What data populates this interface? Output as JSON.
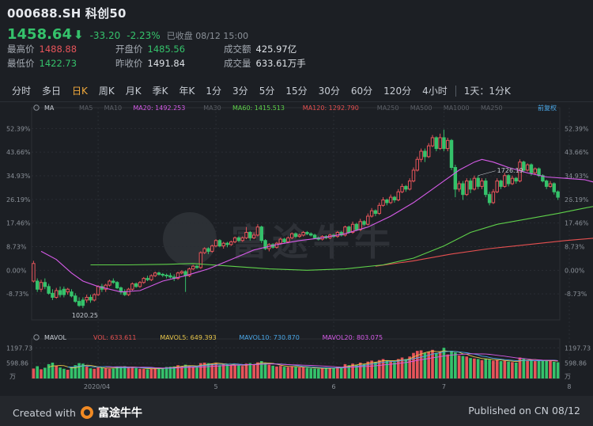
{
  "header": {
    "symbol": "000688.SH",
    "name": "科创50",
    "price": "1458.64",
    "change": "-33.20",
    "change_pct": "-2.23%",
    "status": "已收盘 08/12 15:00"
  },
  "stats": [
    {
      "label": "最高价",
      "value": "1488.88",
      "color": "r"
    },
    {
      "label": "开盘价",
      "value": "1485.56",
      "color": "g"
    },
    {
      "label": "成交额",
      "value": "425.97亿",
      "color": ""
    },
    {
      "label": "最低价",
      "value": "1422.73",
      "color": "g"
    },
    {
      "label": "昨收价",
      "value": "1491.84",
      "color": ""
    },
    {
      "label": "成交量",
      "value": "633.61万手",
      "color": ""
    }
  ],
  "periods": [
    "分时",
    "多日",
    "日K",
    "周K",
    "月K",
    "季K",
    "年K",
    "1分",
    "3分",
    "5分",
    "15分",
    "30分",
    "60分",
    "120分",
    "4小时",
    "1天：1分K"
  ],
  "active_period": "日K",
  "ma_legend": {
    "label": "MA",
    "items": [
      {
        "text": "MA5",
        "color": "#5b5f66"
      },
      {
        "text": "MA10",
        "color": "#5b5f66"
      },
      {
        "text": "MA20: 1492.253",
        "color": "#d65be8"
      },
      {
        "text": "MA30",
        "color": "#5b5f66"
      },
      {
        "text": "MA60: 1415.513",
        "color": "#5fd14a"
      },
      {
        "text": "MA120: 1292.790",
        "color": "#e65050"
      },
      {
        "text": "MA250",
        "color": "#5b5f66"
      },
      {
        "text": "MA500",
        "color": "#5b5f66"
      },
      {
        "text": "MA1000",
        "color": "#5b5f66"
      },
      {
        "text": "MA250",
        "color": "#5b5f66"
      }
    ],
    "adjust": "前复权"
  },
  "vol_legend": {
    "label": "MAVOL",
    "items": [
      {
        "text": "VOL: 633.611",
        "color": "#e65050"
      },
      {
        "text": "MAVOL5: 649.393",
        "color": "#e8c64a"
      },
      {
        "text": "MAVOL10: 730.870",
        "color": "#4aa8e8"
      },
      {
        "text": "MAVOL20: 803.075",
        "color": "#d65be8"
      }
    ]
  },
  "watermark": "富途牛牛",
  "footer": {
    "created_with": "Created with",
    "brand": "富途牛牛",
    "published": "Published on CN 08/12"
  },
  "chart_data": {
    "type": "candlestick",
    "y_ticks": [
      "52.39%",
      "43.66%",
      "34.93%",
      "26.19%",
      "17.46%",
      "8.73%",
      "0.00%",
      "-8.73%"
    ],
    "y_tick_values": [
      52.39,
      43.66,
      34.93,
      26.19,
      17.46,
      8.73,
      0.0,
      -8.73
    ],
    "ylim": [
      -16,
      56
    ],
    "x_labels": [
      {
        "label": "2020/04",
        "index": 17
      },
      {
        "label": "5",
        "index": 48
      },
      {
        "label": "6",
        "index": 79
      },
      {
        "label": "7",
        "index": 108
      },
      {
        "label": "8",
        "index": 141
      }
    ],
    "annotations": [
      {
        "text": "1726.19",
        "index": 117
      },
      {
        "text": "1020.25",
        "index": 13
      }
    ],
    "vol_ticks": [
      "1197.73",
      "598.86",
      "万"
    ],
    "vol_tick_values": [
      1197.73,
      598.86
    ],
    "vol_ylim": [
      0,
      1300
    ],
    "candles": [
      [
        1,
        2.5,
        -4,
        3.5,
        -4.5,
        390
      ],
      [
        0,
        -4,
        -7,
        -3,
        -8,
        480
      ],
      [
        1,
        -7,
        -4.5,
        -3.5,
        -8,
        360
      ],
      [
        0,
        -4.5,
        -6,
        -3,
        -7,
        420
      ],
      [
        0,
        -6,
        -8.5,
        -5,
        -9,
        560
      ],
      [
        0,
        -8.5,
        -10,
        -7,
        -11,
        620
      ],
      [
        1,
        -10,
        -7.5,
        -6.5,
        -10.5,
        510
      ],
      [
        0,
        -7.5,
        -9,
        -6,
        -10,
        430
      ],
      [
        0,
        -9,
        -7,
        -6,
        -10,
        380
      ],
      [
        1,
        -7,
        -8,
        -6.5,
        -9,
        340
      ],
      [
        0,
        -8,
        -9.5,
        -7,
        -10,
        430
      ],
      [
        0,
        -9.5,
        -11.5,
        -8.5,
        -12,
        520
      ],
      [
        0,
        -11.5,
        -13,
        -10,
        -13.5,
        600
      ],
      [
        0,
        -13,
        -11,
        -10,
        -14,
        580
      ],
      [
        1,
        -11,
        -10,
        -9,
        -12,
        470
      ],
      [
        0,
        -10,
        -11,
        -9,
        -12,
        400
      ],
      [
        1,
        -11,
        -9,
        -8.5,
        -11.5,
        380
      ],
      [
        1,
        -9,
        -6,
        -5.5,
        -9.5,
        440
      ],
      [
        0,
        -6,
        -7,
        -5,
        -8,
        420
      ],
      [
        1,
        -7,
        -5.5,
        -5,
        -8,
        410
      ],
      [
        1,
        -5.5,
        -4,
        -3.5,
        -6,
        380
      ],
      [
        0,
        -4,
        -4.5,
        -3,
        -5,
        390
      ],
      [
        0,
        -4.5,
        -6.5,
        -4,
        -7,
        460
      ],
      [
        0,
        -6.5,
        -8,
        -6,
        -9,
        470
      ],
      [
        0,
        -8,
        -9,
        -7,
        -9.5,
        480
      ],
      [
        1,
        -9,
        -7,
        -6.5,
        -9.5,
        420
      ],
      [
        1,
        -7,
        -5,
        -4.5,
        -7.5,
        430
      ],
      [
        0,
        -5,
        -6,
        -4.5,
        -6.5,
        410
      ],
      [
        1,
        -6,
        -4.5,
        -4,
        -6.5,
        380
      ],
      [
        1,
        -4.5,
        -3,
        -2.5,
        -5,
        370
      ],
      [
        0,
        -3,
        -3.5,
        -2,
        -4,
        360
      ],
      [
        1,
        -3.5,
        -2,
        -1.5,
        -4,
        390
      ],
      [
        1,
        -2,
        -1,
        -0.5,
        -2.5,
        400
      ],
      [
        0,
        -1,
        -1.5,
        -0.5,
        -2,
        410
      ],
      [
        0,
        -1.5,
        -1.8,
        -1,
        -2.5,
        380
      ],
      [
        0,
        -1.8,
        -2,
        -1.2,
        -3,
        450
      ],
      [
        0,
        -2,
        -2.5,
        -1,
        -3,
        460
      ],
      [
        0,
        -2.5,
        -3,
        -1.5,
        -4,
        470
      ],
      [
        1,
        -3,
        -1,
        -0.5,
        -3.5,
        520
      ],
      [
        1,
        -1,
        -0.5,
        0,
        -1.5,
        480
      ],
      [
        0,
        -0.5,
        -2,
        0,
        -8,
        540
      ],
      [
        1,
        -2,
        0.5,
        1,
        -2.5,
        500
      ],
      [
        1,
        0.5,
        1.5,
        2,
        0,
        470
      ],
      [
        0,
        1.5,
        1,
        2,
        0.5,
        460
      ],
      [
        1,
        1,
        6.5,
        7,
        0.5,
        600
      ],
      [
        1,
        6.5,
        8,
        8.5,
        6,
        620
      ],
      [
        0,
        8,
        7,
        8.5,
        6,
        600
      ],
      [
        1,
        7,
        9,
        9.5,
        6.5,
        590
      ],
      [
        1,
        9,
        11,
        11.5,
        8.5,
        610
      ],
      [
        0,
        11,
        9,
        11.5,
        8.5,
        520
      ],
      [
        1,
        9,
        10,
        10.5,
        8,
        560
      ],
      [
        0,
        10,
        9.5,
        10.5,
        8.5,
        540
      ],
      [
        1,
        9.5,
        10.5,
        11,
        9,
        530
      ],
      [
        1,
        10.5,
        12,
        12.5,
        10,
        520
      ],
      [
        0,
        12,
        11,
        12.5,
        10.5,
        510
      ],
      [
        1,
        11,
        12,
        12.5,
        10.5,
        490
      ],
      [
        1,
        12,
        14,
        16,
        11.5,
        580
      ],
      [
        0,
        14,
        12,
        14.5,
        11,
        600
      ],
      [
        1,
        12,
        13,
        14,
        11.5,
        560
      ],
      [
        1,
        13,
        16,
        17,
        12.5,
        630
      ],
      [
        0,
        16,
        11,
        16.5,
        10,
        680
      ],
      [
        0,
        11,
        8,
        11.5,
        7.5,
        600
      ],
      [
        1,
        8,
        9.5,
        10,
        7,
        540
      ],
      [
        0,
        9.5,
        8.5,
        10,
        8,
        500
      ],
      [
        1,
        8.5,
        10,
        10.5,
        8,
        470
      ],
      [
        1,
        10,
        11.5,
        12,
        9.5,
        490
      ],
      [
        0,
        11.5,
        10.5,
        12,
        10,
        460
      ],
      [
        1,
        10.5,
        12,
        12.5,
        10,
        450
      ],
      [
        1,
        12,
        13.5,
        14,
        11.5,
        480
      ],
      [
        0,
        13.5,
        12.5,
        14,
        12,
        460
      ],
      [
        1,
        12.5,
        13,
        13.5,
        12,
        430
      ],
      [
        1,
        13,
        14,
        14.5,
        12.5,
        440
      ],
      [
        0,
        14,
        13.5,
        14.5,
        13,
        420
      ],
      [
        0,
        13.5,
        13,
        14,
        12.5,
        400
      ],
      [
        0,
        13,
        12,
        13.5,
        11.5,
        390
      ],
      [
        0,
        12,
        11.5,
        12.5,
        11,
        380
      ],
      [
        1,
        11.5,
        12.5,
        13,
        11,
        400
      ],
      [
        0,
        12.5,
        12,
        13,
        11.5,
        410
      ],
      [
        1,
        12,
        13,
        13.5,
        11.5,
        430
      ],
      [
        0,
        13,
        12.5,
        13.5,
        12,
        410
      ],
      [
        1,
        12.5,
        14,
        14.5,
        12,
        450
      ],
      [
        0,
        14,
        13,
        14.5,
        12.5,
        440
      ],
      [
        1,
        13,
        16,
        16.5,
        12.5,
        560
      ],
      [
        0,
        16,
        14,
        16.5,
        13.5,
        520
      ],
      [
        1,
        14,
        17,
        18,
        13.5,
        580
      ],
      [
        0,
        17,
        15,
        17.5,
        14.5,
        540
      ],
      [
        1,
        15,
        18,
        19,
        14.5,
        620
      ],
      [
        0,
        18,
        17,
        18.5,
        16.5,
        560
      ],
      [
        1,
        17,
        20,
        21,
        16.5,
        660
      ],
      [
        1,
        20,
        22,
        23,
        19.5,
        700
      ],
      [
        0,
        22,
        21,
        22.5,
        20,
        640
      ],
      [
        1,
        21,
        24,
        25,
        20.5,
        720
      ],
      [
        1,
        24,
        26,
        27,
        23.5,
        760
      ],
      [
        0,
        26,
        25,
        26.5,
        24,
        700
      ],
      [
        1,
        25,
        27,
        28,
        24.5,
        680
      ],
      [
        0,
        27,
        26,
        27.5,
        25,
        640
      ],
      [
        1,
        26,
        29,
        30,
        25.5,
        760
      ],
      [
        1,
        29,
        31,
        32,
        28.5,
        820
      ],
      [
        0,
        31,
        30,
        31.5,
        29,
        760
      ],
      [
        1,
        30,
        33,
        34,
        29.5,
        860
      ],
      [
        1,
        33,
        37,
        38,
        32.5,
        1000
      ],
      [
        1,
        37,
        41,
        42,
        36.5,
        1080
      ],
      [
        1,
        41,
        44,
        45,
        40,
        1100
      ],
      [
        0,
        44,
        42,
        45,
        40,
        1000
      ],
      [
        1,
        42,
        46,
        47,
        41.5,
        1050
      ],
      [
        1,
        46,
        49,
        50,
        45.5,
        1120
      ],
      [
        0,
        49,
        45,
        49.5,
        44,
        1000
      ],
      [
        1,
        45,
        49,
        50.5,
        44.5,
        1060
      ],
      [
        0,
        49,
        45,
        52,
        44,
        1200
      ],
      [
        1,
        45,
        48,
        49,
        44,
        940
      ],
      [
        0,
        48,
        38,
        48.5,
        37,
        1080
      ],
      [
        0,
        38,
        30,
        39,
        27,
        1020
      ],
      [
        1,
        30,
        32,
        33,
        29,
        900
      ],
      [
        0,
        32,
        28,
        33,
        26,
        880
      ],
      [
        1,
        28,
        33,
        34,
        27.5,
        860
      ],
      [
        0,
        33,
        30,
        34,
        28.5,
        800
      ],
      [
        1,
        30,
        34,
        35,
        29.5,
        780
      ],
      [
        0,
        34,
        31,
        35,
        30,
        760
      ],
      [
        1,
        31,
        33,
        34,
        30,
        720
      ],
      [
        0,
        33,
        28,
        34,
        27,
        780
      ],
      [
        0,
        28,
        25,
        29,
        24,
        740
      ],
      [
        1,
        25,
        29,
        30,
        24.5,
        700
      ],
      [
        1,
        29,
        33,
        34,
        28.5,
        720
      ],
      [
        0,
        33,
        31,
        33.5,
        30,
        680
      ],
      [
        1,
        31,
        35,
        36,
        30.5,
        690
      ],
      [
        0,
        35,
        32,
        35.5,
        31,
        660
      ],
      [
        1,
        32,
        34,
        35,
        31.5,
        640
      ],
      [
        0,
        34,
        33,
        34.5,
        32,
        620
      ],
      [
        1,
        33,
        40,
        41,
        32.5,
        820
      ],
      [
        0,
        40,
        37,
        40.5,
        36,
        780
      ],
      [
        1,
        37,
        39,
        39.5,
        36.5,
        720
      ],
      [
        0,
        39,
        36,
        39.5,
        35,
        700
      ],
      [
        1,
        36,
        37.5,
        38,
        35.5,
        680
      ],
      [
        0,
        37.5,
        35,
        38,
        34.5,
        690
      ],
      [
        0,
        35,
        33,
        35.5,
        32.5,
        700
      ],
      [
        0,
        33,
        31,
        33.5,
        30,
        720
      ],
      [
        1,
        31,
        32,
        33,
        30.5,
        680
      ],
      [
        0,
        32,
        29,
        32.5,
        28,
        650
      ],
      [
        0,
        29,
        27,
        29.5,
        26,
        634
      ]
    ],
    "ma20": [
      [
        2,
        7
      ],
      [
        6,
        4
      ],
      [
        10,
        -1
      ],
      [
        13,
        -4
      ],
      [
        17,
        -6
      ],
      [
        23,
        -8
      ],
      [
        28,
        -7.5
      ],
      [
        34,
        -4
      ],
      [
        40,
        -2
      ],
      [
        46,
        0.5
      ],
      [
        52,
        4
      ],
      [
        58,
        7.5
      ],
      [
        64,
        9.5
      ],
      [
        70,
        11
      ],
      [
        76,
        12
      ],
      [
        82,
        13.5
      ],
      [
        88,
        16
      ],
      [
        94,
        20
      ],
      [
        100,
        25
      ],
      [
        104,
        29
      ],
      [
        108,
        33
      ],
      [
        112,
        37
      ],
      [
        116,
        40
      ],
      [
        118,
        41
      ],
      [
        121,
        40
      ],
      [
        125,
        38
      ],
      [
        130,
        36
      ],
      [
        135,
        34.5
      ],
      [
        140,
        34
      ],
      [
        145,
        33.5
      ],
      [
        149,
        32
      ]
    ],
    "ma60": [
      [
        15,
        2
      ],
      [
        25,
        2
      ],
      [
        35,
        2.2
      ],
      [
        42,
        2.5
      ],
      [
        52,
        1.5
      ],
      [
        62,
        0.5
      ],
      [
        72,
        0
      ],
      [
        82,
        0.5
      ],
      [
        92,
        2
      ],
      [
        100,
        4.5
      ],
      [
        108,
        9
      ],
      [
        115,
        14
      ],
      [
        122,
        17
      ],
      [
        130,
        19
      ],
      [
        138,
        21
      ],
      [
        145,
        23
      ],
      [
        149,
        24
      ]
    ],
    "ma120": [
      [
        90,
        1.5
      ],
      [
        100,
        3.5
      ],
      [
        110,
        6
      ],
      [
        120,
        8
      ],
      [
        130,
        9.5
      ],
      [
        140,
        11
      ],
      [
        149,
        12
      ]
    ]
  }
}
